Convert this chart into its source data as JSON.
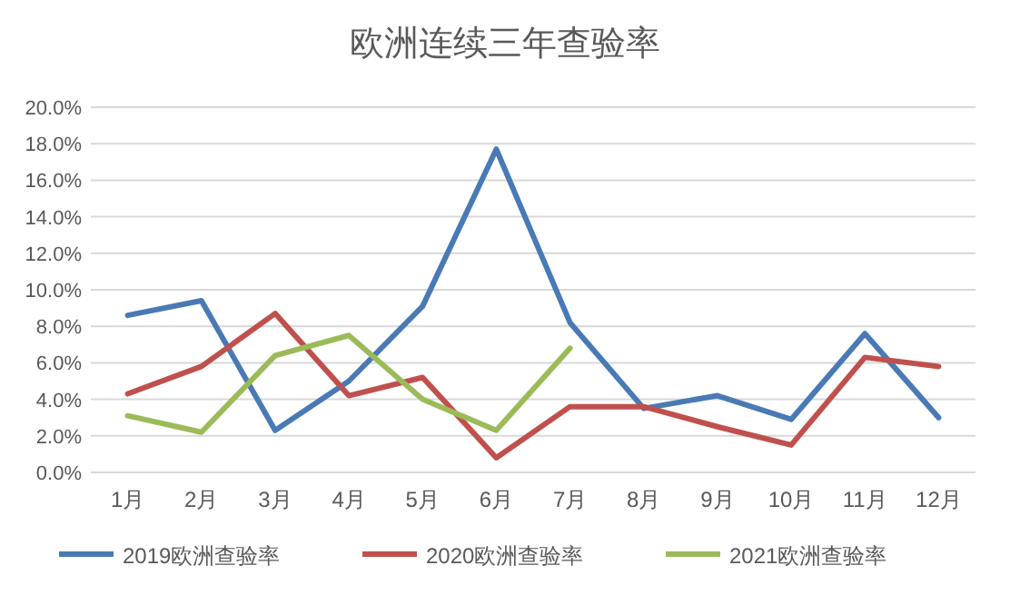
{
  "chart_data": {
    "type": "line",
    "title": "欧洲连续三年查验率",
    "categories": [
      "1月",
      "2月",
      "3月",
      "4月",
      "5月",
      "6月",
      "7月",
      "8月",
      "9月",
      "10月",
      "11月",
      "12月"
    ],
    "series": [
      {
        "name": "2019欧洲查验率",
        "color": "#4a7ab5",
        "values": [
          8.6,
          9.4,
          2.3,
          5.0,
          9.1,
          17.7,
          8.2,
          3.5,
          4.2,
          2.9,
          7.6,
          3.0
        ]
      },
      {
        "name": "2020欧洲查验率",
        "color": "#c0504d",
        "values": [
          4.3,
          5.8,
          8.7,
          4.2,
          5.2,
          0.8,
          3.6,
          3.6,
          2.5,
          1.5,
          6.3,
          5.8
        ]
      },
      {
        "name": "2021欧洲查验率",
        "color": "#9bbb59",
        "values": [
          3.1,
          2.2,
          6.4,
          7.5,
          4.0,
          2.3,
          6.8,
          null,
          null,
          null,
          null,
          null
        ]
      }
    ],
    "ylim": [
      0,
      20
    ],
    "yticks": [
      {
        "value": 0,
        "label": "0.0%"
      },
      {
        "value": 2,
        "label": "2.0%"
      },
      {
        "value": 4,
        "label": "4.0%"
      },
      {
        "value": 6,
        "label": "6.0%"
      },
      {
        "value": 8,
        "label": "8.0%"
      },
      {
        "value": 10,
        "label": "10.0%"
      },
      {
        "value": 12,
        "label": "12.0%"
      },
      {
        "value": 14,
        "label": "14.0%"
      },
      {
        "value": 16,
        "label": "16.0%"
      },
      {
        "value": 18,
        "label": "18.0%"
      },
      {
        "value": 20,
        "label": "20.0%"
      }
    ],
    "grid": "y",
    "legend": "bottom",
    "marker": "none",
    "line_style": "solid"
  }
}
